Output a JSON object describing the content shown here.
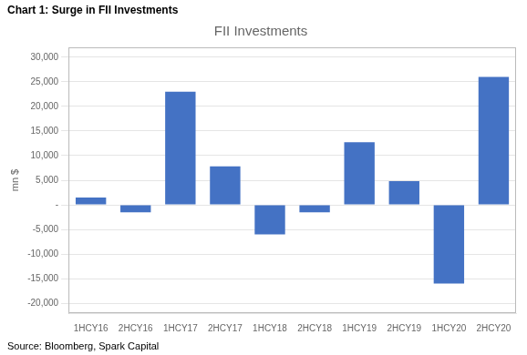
{
  "chart_data": {
    "type": "bar",
    "title": "FII Investments",
    "annotations": [
      "Chart 1: Surge in FII Investments",
      "Source: Bloomberg, Spark Capital"
    ],
    "ylabel": "mn $",
    "categories": [
      "1HCY16",
      "2HCY16",
      "1HCY17",
      "2HCY17",
      "1HCY18",
      "2HCY18",
      "1HCY19",
      "2HCY19",
      "1HCY20",
      "2HCY20"
    ],
    "values": [
      1500,
      -1500,
      23000,
      7800,
      -6000,
      -1500,
      12700,
      4800,
      -16000,
      26000
    ],
    "color": "#4472C4",
    "ylim": [
      -22000,
      32000
    ],
    "yticks": [
      {
        "value": -20000,
        "label": "-20,000"
      },
      {
        "value": -15000,
        "label": "-15,000"
      },
      {
        "value": -10000,
        "label": "-10,000"
      },
      {
        "value": -5000,
        "label": "-5,000"
      },
      {
        "value": 0,
        "label": "-"
      },
      {
        "value": 5000,
        "label": "5,000"
      },
      {
        "value": 10000,
        "label": "10,000"
      },
      {
        "value": 15000,
        "label": "15,000"
      },
      {
        "value": 20000,
        "label": "20,000"
      },
      {
        "value": 25000,
        "label": "25,000"
      },
      {
        "value": 30000,
        "label": "30,000"
      }
    ],
    "grid": true
  }
}
